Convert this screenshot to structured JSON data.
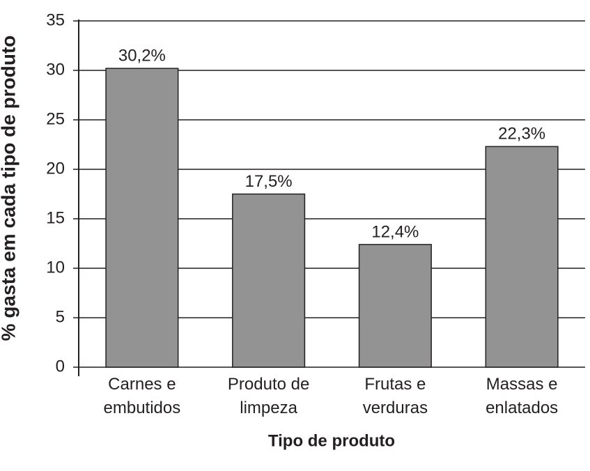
{
  "chart_data": {
    "type": "bar",
    "y_label": "% gasta em cada tipo de produto",
    "x_label": "Tipo de produto",
    "categories": [
      "Carnes e embutidos",
      "Produto de limpeza",
      "Frutas e verduras",
      "Massas e enlatados"
    ],
    "values": [
      30.2,
      17.5,
      12.4,
      22.3
    ],
    "value_labels": [
      "30,2%",
      "17,5%",
      "12,4%",
      "22,3%"
    ],
    "color": "#939393",
    "ylim": [
      0,
      35
    ],
    "yticks": [
      0,
      5,
      10,
      15,
      20,
      25,
      30,
      35
    ],
    "grid": true
  }
}
